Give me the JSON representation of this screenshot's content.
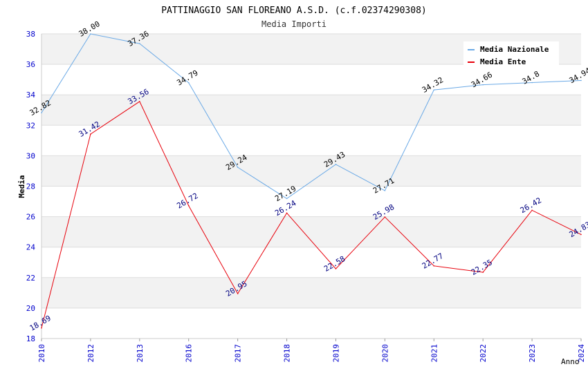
{
  "chart_data": {
    "type": "line",
    "title": "PATTINAGGIO SAN FLOREANO A.S.D. (c.f.02374290308)",
    "subtitle": "Media Importi",
    "xlabel": "Anno",
    "ylabel": "Media",
    "categories": [
      "2010",
      "2012",
      "2013",
      "2016",
      "2017",
      "2018",
      "2019",
      "2020",
      "2021",
      "2022",
      "2023",
      "2024"
    ],
    "ylim": [
      18,
      38
    ],
    "yticks": [
      "18",
      "20",
      "22",
      "24",
      "26",
      "28",
      "30",
      "32",
      "34",
      "36",
      "38"
    ],
    "grid": true,
    "legend_position": "top-right",
    "series": [
      {
        "name": "Media Nazionale",
        "color": "#6aa9e6",
        "label_color": "#000000",
        "values": [
          32.82,
          38.0,
          37.36,
          34.79,
          29.24,
          27.19,
          29.43,
          27.71,
          34.32,
          34.66,
          34.8,
          34.94
        ],
        "labels": [
          "32.82",
          "38.00",
          "37.36",
          "34.79",
          "29.24",
          "27.19",
          "29.43",
          "27.71",
          "34.32",
          "34.66",
          "34.8",
          "34.94"
        ]
      },
      {
        "name": "Media Ente",
        "color": "#e8000b",
        "label_color": "#000080",
        "values": [
          18.69,
          31.42,
          33.56,
          26.72,
          20.95,
          26.24,
          22.58,
          25.98,
          22.77,
          22.35,
          26.42,
          24.83
        ],
        "labels": [
          "18.69",
          "31.42",
          "33.56",
          "26.72",
          "20.95",
          "26.24",
          "22.58",
          "25.98",
          "22.77",
          "22.35",
          "26.42",
          "24.83"
        ]
      }
    ]
  }
}
